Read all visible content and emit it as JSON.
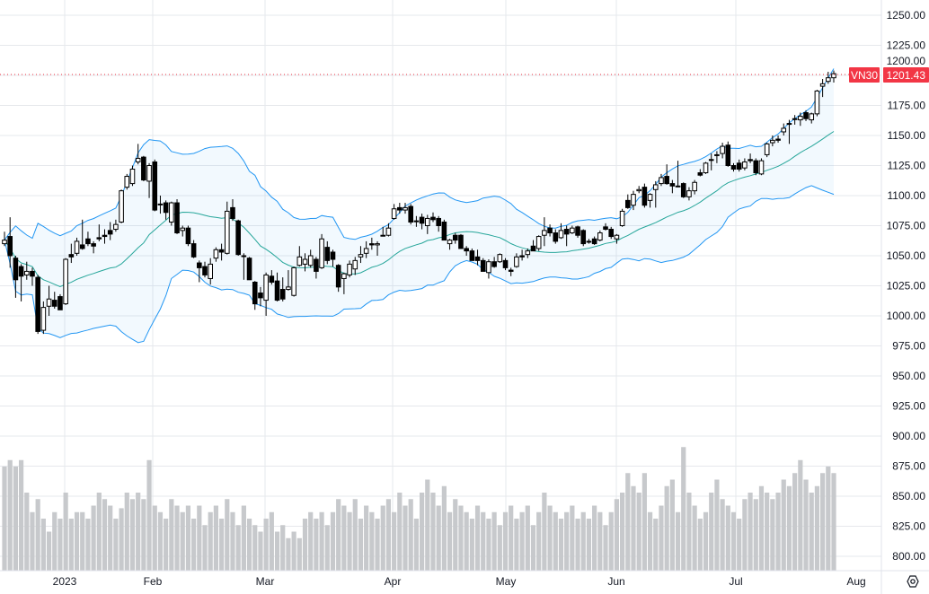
{
  "chart_data": {
    "type": "candlestick",
    "symbol": "VN30",
    "last_price": "1201.43",
    "x_labels": [
      "2023",
      "Feb",
      "Mar",
      "Apr",
      "May",
      "Jun",
      "Jul",
      "Aug"
    ],
    "y_ticks": [
      "1250.00",
      "1225.00",
      "1200.00",
      "1175.00",
      "1150.00",
      "1125.00",
      "1100.00",
      "1075.00",
      "1050.00",
      "1025.00",
      "1000.00",
      "975.00",
      "950.00",
      "925.00",
      "900.00",
      "875.00",
      "850.00",
      "825.00",
      "800.00"
    ],
    "ylim": [
      790,
      1262
    ],
    "grid": true,
    "indicators": {
      "bollinger": {
        "period": 20,
        "stddev": 2
      }
    },
    "colors": {
      "up_body": "#ffffff",
      "down_body": "#000000",
      "wick": "#000000",
      "band": "#2196f3",
      "band_fill": "#2196f3",
      "basis": "#26a69a",
      "volume": "#c7c9cc",
      "price_badge": "#f23645",
      "grid": "#e6e8ec"
    },
    "ohlc": [
      [
        1060,
        1070,
        1058,
        1063
      ],
      [
        1066,
        1082,
        1040,
        1050
      ],
      [
        1048,
        1050,
        1015,
        1030
      ],
      [
        1041,
        1043,
        1012,
        1033
      ],
      [
        1034,
        1045,
        1030,
        1037
      ],
      [
        1037,
        1040,
        1025,
        1033
      ],
      [
        1032,
        1034,
        985,
        987
      ],
      [
        988,
        1012,
        985,
        1007
      ],
      [
        1008,
        1025,
        1000,
        1014
      ],
      [
        1013,
        1020,
        1006,
        1008
      ],
      [
        1016,
        1018,
        1005,
        1005
      ],
      [
        1010,
        1048,
        1009,
        1047
      ],
      [
        1051,
        1060,
        1044,
        1049
      ],
      [
        1052,
        1065,
        1050,
        1062
      ],
      [
        1059,
        1080,
        1055,
        1056
      ],
      [
        1064,
        1070,
        1058,
        1060
      ],
      [
        1060,
        1062,
        1052,
        1058
      ],
      [
        1065,
        1076,
        1062,
        1064
      ],
      [
        1067,
        1072,
        1060,
        1066
      ],
      [
        1071,
        1078,
        1063,
        1068
      ],
      [
        1072,
        1080,
        1070,
        1076
      ],
      [
        1078,
        1105,
        1077,
        1104
      ],
      [
        1107,
        1118,
        1105,
        1116
      ],
      [
        1110,
        1125,
        1108,
        1122
      ],
      [
        1128,
        1143,
        1126,
        1131
      ],
      [
        1132,
        1133,
        1112,
        1113
      ],
      [
        1112,
        1127,
        1098,
        1125
      ],
      [
        1128,
        1130,
        1087,
        1088
      ],
      [
        1093,
        1100,
        1085,
        1093
      ],
      [
        1094,
        1096,
        1080,
        1086
      ],
      [
        1078,
        1095,
        1075,
        1094
      ],
      [
        1094,
        1097,
        1068,
        1069
      ],
      [
        1071,
        1075,
        1066,
        1073
      ],
      [
        1073,
        1075,
        1058,
        1060
      ],
      [
        1060,
        1063,
        1048,
        1049
      ],
      [
        1044,
        1046,
        1028,
        1040
      ],
      [
        1041,
        1045,
        1032,
        1034
      ],
      [
        1031,
        1048,
        1026,
        1043
      ],
      [
        1048,
        1057,
        1045,
        1055
      ],
      [
        1055,
        1060,
        1046,
        1053
      ],
      [
        1052,
        1095,
        1051,
        1087
      ],
      [
        1090,
        1097,
        1079,
        1081
      ],
      [
        1079,
        1080,
        1050,
        1051
      ],
      [
        1050,
        1052,
        1030,
        1050
      ],
      [
        1048,
        1049,
        1030,
        1030
      ],
      [
        1028,
        1029,
        1005,
        1010
      ],
      [
        1019,
        1024,
        1008,
        1015
      ],
      [
        1013,
        1036,
        1000,
        1034
      ],
      [
        1033,
        1038,
        1026,
        1028
      ],
      [
        1029,
        1036,
        1012,
        1013
      ],
      [
        1022,
        1032,
        1012,
        1014
      ],
      [
        1022,
        1038,
        1021,
        1024
      ],
      [
        1017,
        1041,
        1016,
        1040
      ],
      [
        1042,
        1058,
        1041,
        1049
      ],
      [
        1043,
        1052,
        1037,
        1047
      ],
      [
        1042,
        1055,
        1040,
        1050
      ],
      [
        1047,
        1049,
        1031,
        1037
      ],
      [
        1040,
        1068,
        1039,
        1064
      ],
      [
        1057,
        1062,
        1043,
        1046
      ],
      [
        1053,
        1055,
        1041,
        1047
      ],
      [
        1042,
        1043,
        1020,
        1024
      ],
      [
        1031,
        1036,
        1018,
        1035
      ],
      [
        1034,
        1046,
        1032,
        1043
      ],
      [
        1039,
        1049,
        1034,
        1046
      ],
      [
        1049,
        1058,
        1044,
        1051
      ],
      [
        1052,
        1062,
        1048,
        1056
      ],
      [
        1060,
        1065,
        1055,
        1059
      ],
      [
        1059,
        1062,
        1050,
        1060
      ],
      [
        1067,
        1074,
        1066,
        1067
      ],
      [
        1067,
        1077,
        1066,
        1073
      ],
      [
        1081,
        1093,
        1080,
        1089
      ],
      [
        1090,
        1094,
        1085,
        1088
      ],
      [
        1088,
        1094,
        1085,
        1090
      ],
      [
        1091,
        1093,
        1076,
        1078
      ],
      [
        1079,
        1083,
        1074,
        1079
      ],
      [
        1082,
        1085,
        1072,
        1077
      ],
      [
        1075,
        1084,
        1068,
        1081
      ],
      [
        1082,
        1086,
        1078,
        1080
      ],
      [
        1081,
        1083,
        1070,
        1075
      ],
      [
        1078,
        1080,
        1063,
        1063
      ],
      [
        1060,
        1064,
        1055,
        1063
      ],
      [
        1067,
        1069,
        1060,
        1063
      ],
      [
        1067,
        1068,
        1056,
        1056
      ],
      [
        1056,
        1058,
        1050,
        1054
      ],
      [
        1054,
        1056,
        1046,
        1046
      ],
      [
        1049,
        1055,
        1042,
        1046
      ],
      [
        1046,
        1048,
        1037,
        1037
      ],
      [
        1036,
        1047,
        1031,
        1045
      ],
      [
        1045,
        1049,
        1040,
        1041
      ],
      [
        1045,
        1052,
        1044,
        1051
      ],
      [
        1046,
        1048,
        1038,
        1040
      ],
      [
        1038,
        1040,
        1033,
        1037
      ],
      [
        1041,
        1052,
        1040,
        1049
      ],
      [
        1050,
        1055,
        1046,
        1049
      ],
      [
        1051,
        1056,
        1048,
        1054
      ],
      [
        1058,
        1063,
        1054,
        1054
      ],
      [
        1056,
        1067,
        1054,
        1066
      ],
      [
        1067,
        1082,
        1058,
        1071
      ],
      [
        1073,
        1076,
        1066,
        1069
      ],
      [
        1069,
        1072,
        1060,
        1062
      ],
      [
        1065,
        1077,
        1064,
        1071
      ],
      [
        1072,
        1075,
        1058,
        1068
      ],
      [
        1069,
        1075,
        1068,
        1073
      ],
      [
        1074,
        1075,
        1065,
        1067
      ],
      [
        1071,
        1072,
        1058,
        1060
      ],
      [
        1062,
        1064,
        1060,
        1062
      ],
      [
        1064,
        1066,
        1059,
        1060
      ],
      [
        1063,
        1071,
        1062,
        1069
      ],
      [
        1074,
        1077,
        1071,
        1072
      ],
      [
        1072,
        1074,
        1064,
        1066
      ],
      [
        1064,
        1068,
        1060,
        1067
      ],
      [
        1075,
        1089,
        1074,
        1087
      ],
      [
        1096,
        1101,
        1089,
        1090
      ],
      [
        1092,
        1104,
        1088,
        1101
      ],
      [
        1104,
        1108,
        1102,
        1105
      ],
      [
        1107,
        1110,
        1090,
        1092
      ],
      [
        1096,
        1102,
        1090,
        1101
      ],
      [
        1105,
        1112,
        1090,
        1109
      ],
      [
        1110,
        1118,
        1108,
        1115
      ],
      [
        1116,
        1126,
        1109,
        1110
      ],
      [
        1110,
        1113,
        1102,
        1108
      ],
      [
        1108,
        1129,
        1107,
        1108
      ],
      [
        1110,
        1111,
        1098,
        1099
      ],
      [
        1099,
        1107,
        1096,
        1104
      ],
      [
        1104,
        1113,
        1101,
        1111
      ],
      [
        1119,
        1122,
        1116,
        1117
      ],
      [
        1119,
        1128,
        1118,
        1127
      ],
      [
        1130,
        1135,
        1121,
        1130
      ],
      [
        1134,
        1137,
        1127,
        1134
      ],
      [
        1135,
        1144,
        1131,
        1141
      ],
      [
        1142,
        1145,
        1124,
        1125
      ],
      [
        1125,
        1127,
        1120,
        1122
      ],
      [
        1127,
        1130,
        1120,
        1122
      ],
      [
        1123,
        1131,
        1121,
        1128
      ],
      [
        1130,
        1135,
        1127,
        1129
      ],
      [
        1129,
        1131,
        1117,
        1119
      ],
      [
        1118,
        1131,
        1117,
        1129
      ],
      [
        1134,
        1144,
        1132,
        1143
      ],
      [
        1144,
        1150,
        1141,
        1146
      ],
      [
        1147,
        1150,
        1144,
        1146
      ],
      [
        1153,
        1160,
        1150,
        1156
      ],
      [
        1160,
        1163,
        1143,
        1160
      ],
      [
        1164,
        1167,
        1159,
        1164
      ],
      [
        1163,
        1169,
        1158,
        1166
      ],
      [
        1169,
        1171,
        1162,
        1164
      ],
      [
        1163,
        1169,
        1160,
        1168
      ],
      [
        1168,
        1188,
        1166,
        1187
      ],
      [
        1191,
        1197,
        1182,
        1193
      ],
      [
        1195,
        1203,
        1193,
        1198
      ],
      [
        1198,
        1204,
        1194,
        1201.43
      ]
    ],
    "volume_relative": [
      80,
      85,
      80,
      85,
      60,
      45,
      55,
      40,
      30,
      45,
      40,
      60,
      40,
      45,
      45,
      40,
      50,
      60,
      55,
      50,
      40,
      48,
      60,
      55,
      60,
      55,
      85,
      50,
      45,
      40,
      55,
      50,
      45,
      50,
      40,
      50,
      35,
      45,
      50,
      40,
      55,
      45,
      35,
      50,
      40,
      35,
      30,
      40,
      45,
      30,
      35,
      25,
      30,
      25,
      40,
      45,
      40,
      45,
      35,
      45,
      55,
      50,
      45,
      55,
      40,
      50,
      45,
      40,
      50,
      55,
      45,
      60,
      50,
      55,
      40,
      60,
      70,
      60,
      50,
      65,
      45,
      55,
      50,
      45,
      40,
      50,
      45,
      40,
      45,
      35,
      45,
      50,
      40,
      45,
      50,
      35,
      45,
      60,
      50,
      45,
      40,
      45,
      50,
      40,
      45,
      40,
      50,
      45,
      35,
      45,
      55,
      60,
      75,
      65,
      60,
      75,
      45,
      40,
      50,
      65,
      70,
      45,
      95,
      60,
      50,
      40,
      45,
      60,
      70,
      55,
      50,
      45,
      40,
      55,
      60,
      55,
      65,
      60,
      55,
      60,
      70,
      65,
      75,
      85,
      70,
      60,
      65,
      75,
      80,
      75
    ]
  },
  "ui": {
    "settings_icon": "gear-icon"
  }
}
